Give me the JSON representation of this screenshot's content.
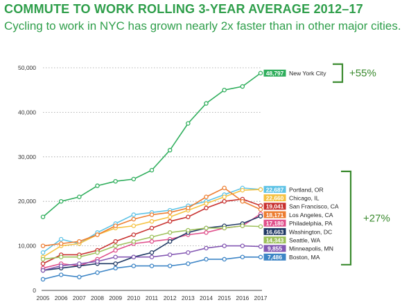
{
  "title": "COMMUTE TO WORK ROLLING 3-YEAR AVERAGE 2012–17",
  "subtitle": "Cycling to work in NYC has grown nearly 2x faster than in other major cities.",
  "chart_data": {
    "type": "line",
    "x": [
      "2005",
      "2006",
      "2007",
      "2008",
      "2009",
      "2010",
      "2011",
      "2012",
      "2013",
      "2014",
      "2015",
      "2016",
      "2017"
    ],
    "ylim": [
      0,
      50000
    ],
    "yticks": [
      "0",
      "10,000",
      "20,000",
      "30,000",
      "40,000",
      "50,000"
    ],
    "yticks_values": [
      0,
      10000,
      20000,
      30000,
      40000,
      50000
    ],
    "grid": true,
    "series": [
      {
        "name": "New York City",
        "label": "48,797",
        "color": "#2fae5c",
        "values": [
          16500,
          20000,
          21000,
          23500,
          24500,
          25000,
          27000,
          31500,
          37500,
          42000,
          45000,
          45800,
          48797
        ]
      },
      {
        "name": "Portland, OR",
        "label": "22,687",
        "color": "#5fc3e6",
        "values": [
          8500,
          11500,
          10500,
          13000,
          15000,
          17000,
          17500,
          18000,
          19000,
          20000,
          21500,
          23000,
          22687
        ]
      },
      {
        "name": "Chicago, IL",
        "label": "22,660",
        "color": "#f5c242",
        "values": [
          7500,
          10000,
          10500,
          12500,
          14000,
          14500,
          15500,
          16500,
          18000,
          19500,
          21000,
          22500,
          22660
        ]
      },
      {
        "name": "San Francisco, CA",
        "label": "19,041",
        "color": "#c8312f",
        "values": [
          6000,
          8000,
          8000,
          9000,
          11000,
          12500,
          14000,
          15500,
          16500,
          18500,
          20000,
          20500,
          19041
        ]
      },
      {
        "name": "Los Angeles, CA",
        "label": "18,171",
        "color": "#ed7d31",
        "values": [
          10000,
          10500,
          11000,
          12500,
          14500,
          16000,
          17000,
          17500,
          18500,
          21000,
          23000,
          20000,
          18171
        ]
      },
      {
        "name": "Philadelphia, PA",
        "label": "17,180",
        "color": "#e0508c",
        "values": [
          5000,
          6000,
          5500,
          7000,
          9000,
          10500,
          11000,
          11500,
          12500,
          13000,
          14000,
          14500,
          17180
        ]
      },
      {
        "name": "Washington, DC",
        "label": "16,663",
        "color": "#1f3864",
        "values": [
          4500,
          5000,
          5500,
          6000,
          6000,
          7500,
          8500,
          11000,
          13000,
          14000,
          14500,
          15000,
          16663
        ]
      },
      {
        "name": "Seattle, WA",
        "label": "14,343",
        "color": "#9dc15a",
        "values": [
          7000,
          7500,
          7500,
          8500,
          10000,
          11000,
          12000,
          13000,
          13500,
          14000,
          14000,
          14500,
          14343
        ]
      },
      {
        "name": "Minneapolis, MN",
        "label": "9,855",
        "color": "#8458b3",
        "values": [
          4500,
          5500,
          6000,
          6500,
          7500,
          7500,
          7500,
          8000,
          8500,
          9500,
          10000,
          10000,
          9855
        ]
      },
      {
        "name": "Boston, MA",
        "label": "7,486",
        "color": "#3d85c6",
        "values": [
          2500,
          3500,
          3000,
          4000,
          5000,
          5500,
          5500,
          5500,
          6000,
          7000,
          7000,
          7500,
          7486
        ]
      }
    ],
    "annotations": {
      "top_bracket": "+55%",
      "bottom_bracket": "+27%",
      "bracket_color": "#3a8a2e"
    }
  }
}
